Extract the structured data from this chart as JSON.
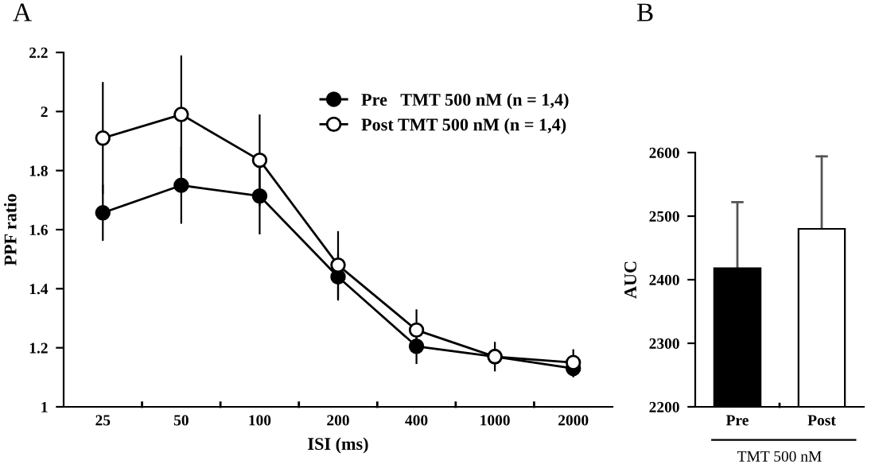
{
  "chart_data": [
    {
      "type": "line",
      "title": "A",
      "xlabel": "ISI (ms)",
      "ylabel": "PPF ratio",
      "categories": [
        "25",
        "50",
        "100",
        "200",
        "400",
        "1000",
        "2000"
      ],
      "ylim": [
        1,
        2.2
      ],
      "yticks": [
        1,
        1.2,
        1.4,
        1.6,
        1.8,
        2,
        2.2
      ],
      "marker": "circle",
      "legend": "top right",
      "grid": false,
      "series": [
        {
          "name": "Pre   TMT 500 nM (n = 1,4)",
          "color": "#000000",
          "values": [
            1.657,
            1.75,
            1.714,
            1.44,
            1.205,
            1.17,
            1.13
          ],
          "errors": [
            0.095,
            0.13,
            0.13,
            0.08,
            0.06,
            null,
            0.03
          ]
        },
        {
          "name": "Post TMT 500 nM (n = 1,4)",
          "color": "#ffffff",
          "values": [
            1.91,
            1.99,
            1.835,
            1.48,
            1.26,
            1.17,
            1.15
          ],
          "errors": [
            0.19,
            0.2,
            0.155,
            0.115,
            0.07,
            0.05,
            0.045
          ]
        }
      ]
    },
    {
      "type": "bar",
      "title": "B",
      "xlabel": "TMT 500 nM",
      "ylabel": "AUC",
      "categories": [
        "Pre",
        "Post"
      ],
      "values": [
        2418,
        2480
      ],
      "colors": [
        "#000000",
        "#ffffff"
      ],
      "errors": [
        [
          2418,
          2522
        ],
        [
          2480,
          2594
        ]
      ],
      "ylim": [
        2200,
        2600
      ],
      "yticks": [
        2200,
        2300,
        2400,
        2500,
        2600
      ],
      "grid": false
    }
  ]
}
